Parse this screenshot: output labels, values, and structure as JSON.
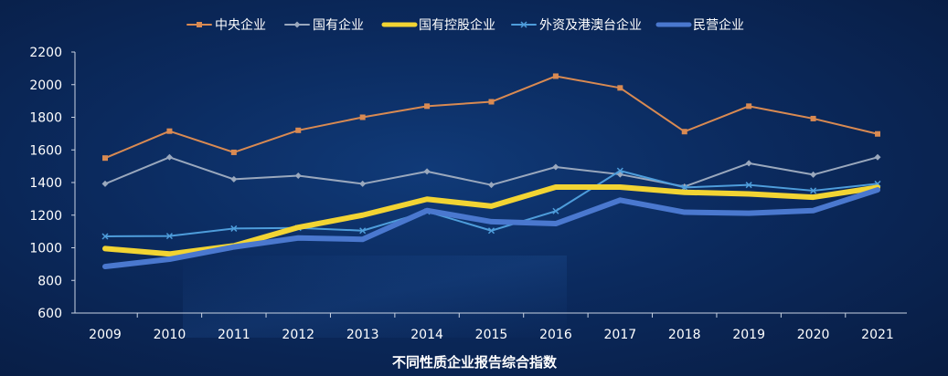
{
  "chart_data": {
    "type": "line",
    "title": "",
    "xlabel": "不同性质企业报告综合指数",
    "ylabel": "",
    "categories": [
      "2009",
      "2010",
      "2011",
      "2012",
      "2013",
      "2014",
      "2015",
      "2016",
      "2017",
      "2018",
      "2019",
      "2020",
      "2021"
    ],
    "ylim": [
      600,
      2200
    ],
    "yticks": [
      600,
      800,
      1000,
      1200,
      1400,
      1600,
      1800,
      2000,
      2200
    ],
    "grid": false,
    "legend_position": "top",
    "series": [
      {
        "name": "中央企业",
        "color": "#d98a52",
        "marker": "square",
        "values": [
          1550,
          1715,
          1585,
          1720,
          1800,
          1868,
          1895,
          2052,
          1980,
          1712,
          1868,
          1792,
          1698
        ]
      },
      {
        "name": "国有企业",
        "color": "#9aa8bd",
        "marker": "diamond",
        "values": [
          1392,
          1555,
          1420,
          1442,
          1392,
          1468,
          1385,
          1495,
          1450,
          1375,
          1518,
          1448,
          1555
        ]
      },
      {
        "name": "国有控股企业",
        "color": "#f2d433",
        "marker": "none",
        "values": [
          995,
          962,
          1012,
          1125,
          1200,
          1298,
          1255,
          1372,
          1372,
          1340,
          1330,
          1310,
          1370
        ]
      },
      {
        "name": "外资及港澳台企业",
        "color": "#4e9ddb",
        "marker": "x",
        "values": [
          1070,
          1072,
          1118,
          1122,
          1105,
          1222,
          1105,
          1225,
          1472,
          1370,
          1385,
          1350,
          1392
        ]
      },
      {
        "name": "民营企业",
        "color": "#4a78cf",
        "marker": "none",
        "values": [
          885,
          930,
          1005,
          1060,
          1052,
          1228,
          1160,
          1148,
          1292,
          1218,
          1212,
          1228,
          1355
        ]
      }
    ]
  }
}
